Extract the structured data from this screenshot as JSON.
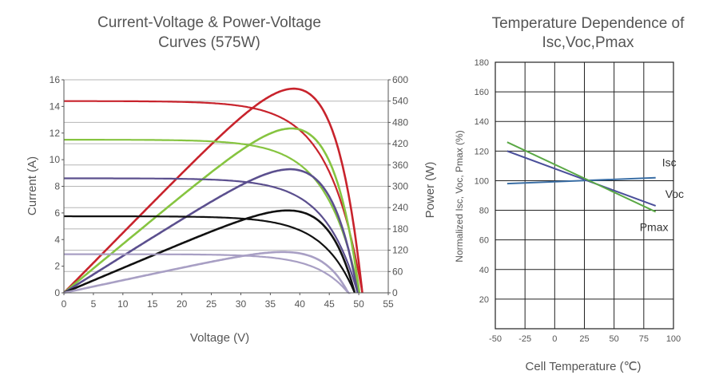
{
  "chart_data": [
    {
      "type": "line",
      "title_lines": [
        "Current-Voltage & Power-Voltage",
        "Curves (575W)"
      ],
      "xlabel": "Voltage (V)",
      "ylabel": "Current (A)",
      "y2label": "Power (W)",
      "xlim": [
        0,
        55
      ],
      "ylim": [
        0,
        16
      ],
      "y2lim": [
        0,
        600
      ],
      "xticks": [
        "0",
        "5",
        "10",
        "15",
        "20",
        "25",
        "30",
        "35",
        "40",
        "45",
        "50",
        "55"
      ],
      "yticks": [
        "0",
        "2",
        "4",
        "6",
        "8",
        "10",
        "12",
        "14",
        "16"
      ],
      "y2ticks": [
        "0",
        "60",
        "120",
        "180",
        "240",
        "300",
        "360",
        "420",
        "480",
        "540",
        "600"
      ],
      "series": [
        {
          "color": "#c8232c",
          "isc": 14.4,
          "voc": 50.6,
          "vmp": 42.0,
          "pmax": 575
        },
        {
          "color": "#86c440",
          "isc": 11.5,
          "voc": 50.1,
          "vmp": 42.0,
          "pmax": 463
        },
        {
          "color": "#5b4f8e",
          "isc": 8.6,
          "voc": 49.8,
          "vmp": 42.0,
          "pmax": 348
        },
        {
          "color": "#111111",
          "isc": 5.75,
          "voc": 49.3,
          "vmp": 42.0,
          "pmax": 232
        },
        {
          "color": "#a89fc4",
          "isc": 2.9,
          "voc": 48.2,
          "vmp": 41.5,
          "pmax": 115
        }
      ]
    },
    {
      "type": "line",
      "title_lines": [
        "Temperature Dependence of",
        "Isc,Voc,Pmax"
      ],
      "xlabel": "Cell Temperature (℃)",
      "ylabel": "Normalized Isc, Voc, Pmax (%)",
      "xlim": [
        -50,
        100
      ],
      "ylim": [
        0,
        180
      ],
      "xticks": [
        "-50",
        "-25",
        "0",
        "25",
        "50",
        "75",
        "100"
      ],
      "yticks": [
        "20",
        "40",
        "60",
        "80",
        "100",
        "120",
        "140",
        "160",
        "180"
      ],
      "series": [
        {
          "name": "Isc",
          "color": "#3a6ea5",
          "x": [
            -40,
            85
          ],
          "y": [
            98,
            102
          ]
        },
        {
          "name": "Voc",
          "color": "#4a4f9a",
          "x": [
            -40,
            85
          ],
          "y": [
            120,
            83
          ]
        },
        {
          "name": "Pmax",
          "color": "#5aa845",
          "x": [
            -40,
            85
          ],
          "y": [
            126,
            79
          ]
        }
      ]
    }
  ]
}
